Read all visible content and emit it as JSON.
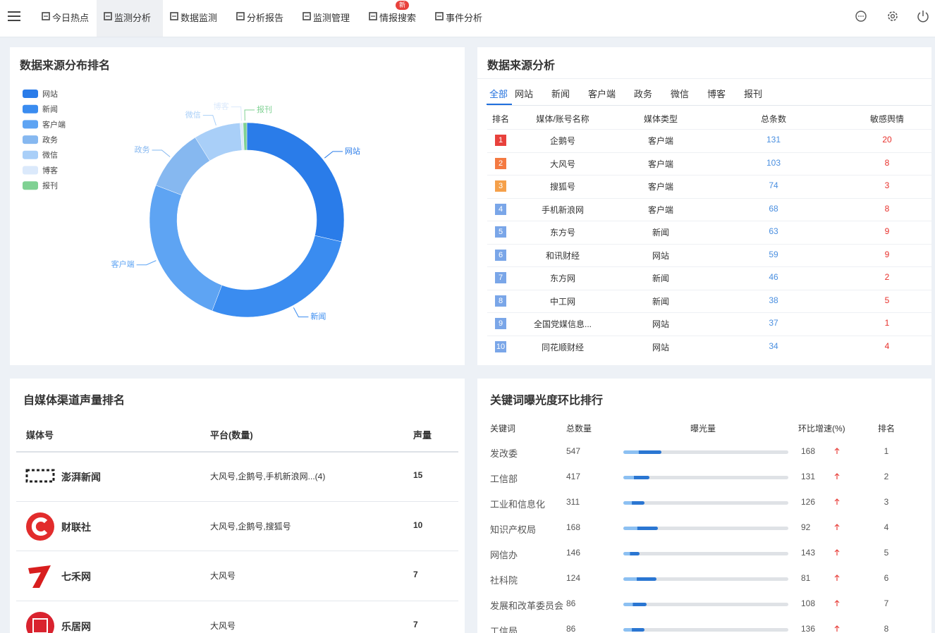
{
  "nav": {
    "items": [
      {
        "label": "今日热点"
      },
      {
        "label": "监测分析",
        "active": true
      },
      {
        "label": "数据监测"
      },
      {
        "label": "分析报告"
      },
      {
        "label": "监测管理"
      },
      {
        "label": "情报搜索",
        "badge": "新"
      },
      {
        "label": "事件分析"
      }
    ]
  },
  "chart_data": {
    "type": "pie",
    "donut": true,
    "title": "数据来源分布排名",
    "legend": "top-left",
    "categories": [
      "网站",
      "新闻",
      "客户端",
      "政务",
      "微信",
      "博客",
      "报刊"
    ],
    "values": [
      28.6,
      27.2,
      25.0,
      10.3,
      7.8,
      0.5,
      0.6
    ],
    "colors": [
      "#2a7ce9",
      "#3a8cf0",
      "#5ea4f3",
      "#86b8f0",
      "#a9cff8",
      "#dbe9fb",
      "#7fd193"
    ]
  },
  "source_table": {
    "title": "数据来源分析",
    "tabs": [
      "全部",
      "网站",
      "新闻",
      "客户端",
      "政务",
      "微信",
      "博客",
      "报刊"
    ],
    "active_tab": 0,
    "columns": [
      "排名",
      "媒体/账号名称",
      "媒体类型",
      "总条数",
      "敏感舆情"
    ],
    "rows": [
      [
        1,
        "企鹅号",
        "客户端",
        131,
        20
      ],
      [
        2,
        "大风号",
        "客户端",
        103,
        8
      ],
      [
        3,
        "搜狐号",
        "客户端",
        74,
        3
      ],
      [
        4,
        "手机新浪网",
        "客户端",
        68,
        8
      ],
      [
        5,
        "东方号",
        "新闻",
        63,
        9
      ],
      [
        6,
        "和讯财经",
        "网站",
        59,
        9
      ],
      [
        7,
        "东方网",
        "新闻",
        46,
        2
      ],
      [
        8,
        "中工网",
        "新闻",
        38,
        5
      ],
      [
        9,
        "全国党媒信息...",
        "网站",
        37,
        1
      ],
      [
        10,
        "同花顺财经",
        "网站",
        34,
        4
      ]
    ]
  },
  "media_table": {
    "title": "自媒体渠道声量排名",
    "columns": [
      "媒体号",
      "平台(数量)",
      "声量"
    ],
    "rows": [
      [
        "澎湃新闻",
        "大风号,企鹅号,手机新浪网...(4)",
        15
      ],
      [
        "财联社",
        "大风号,企鹅号,搜狐号",
        10
      ],
      [
        "七禾网",
        "大风号",
        7
      ],
      [
        "乐居网",
        "大风号",
        7
      ]
    ]
  },
  "keyword_table": {
    "title": "关键词曝光度环比排行",
    "columns": [
      "关键词",
      "总数量",
      "曝光量",
      "环比增速(%)",
      "排名"
    ],
    "rows": [
      {
        "keyword": "发改委",
        "total": 547,
        "exposure": 23,
        "growth": 168,
        "rank": 1
      },
      {
        "keyword": "工信部",
        "total": 417,
        "exposure": 16,
        "growth": 131,
        "rank": 2
      },
      {
        "keyword": "工业和信息化",
        "total": 311,
        "exposure": 13,
        "growth": 126,
        "rank": 3
      },
      {
        "keyword": "知识产权局",
        "total": 168,
        "exposure": 21,
        "growth": 92,
        "rank": 4
      },
      {
        "keyword": "网信办",
        "total": 146,
        "exposure": 10,
        "growth": 143,
        "rank": 5
      },
      {
        "keyword": "社科院",
        "total": 124,
        "exposure": 20,
        "growth": 81,
        "rank": 6
      },
      {
        "keyword": "发展和改革委员会",
        "total": 86,
        "exposure": 14,
        "growth": 108,
        "rank": 7
      },
      {
        "keyword": "工信局",
        "total": 86,
        "exposure": 13,
        "growth": 136,
        "rank": 8
      }
    ]
  }
}
